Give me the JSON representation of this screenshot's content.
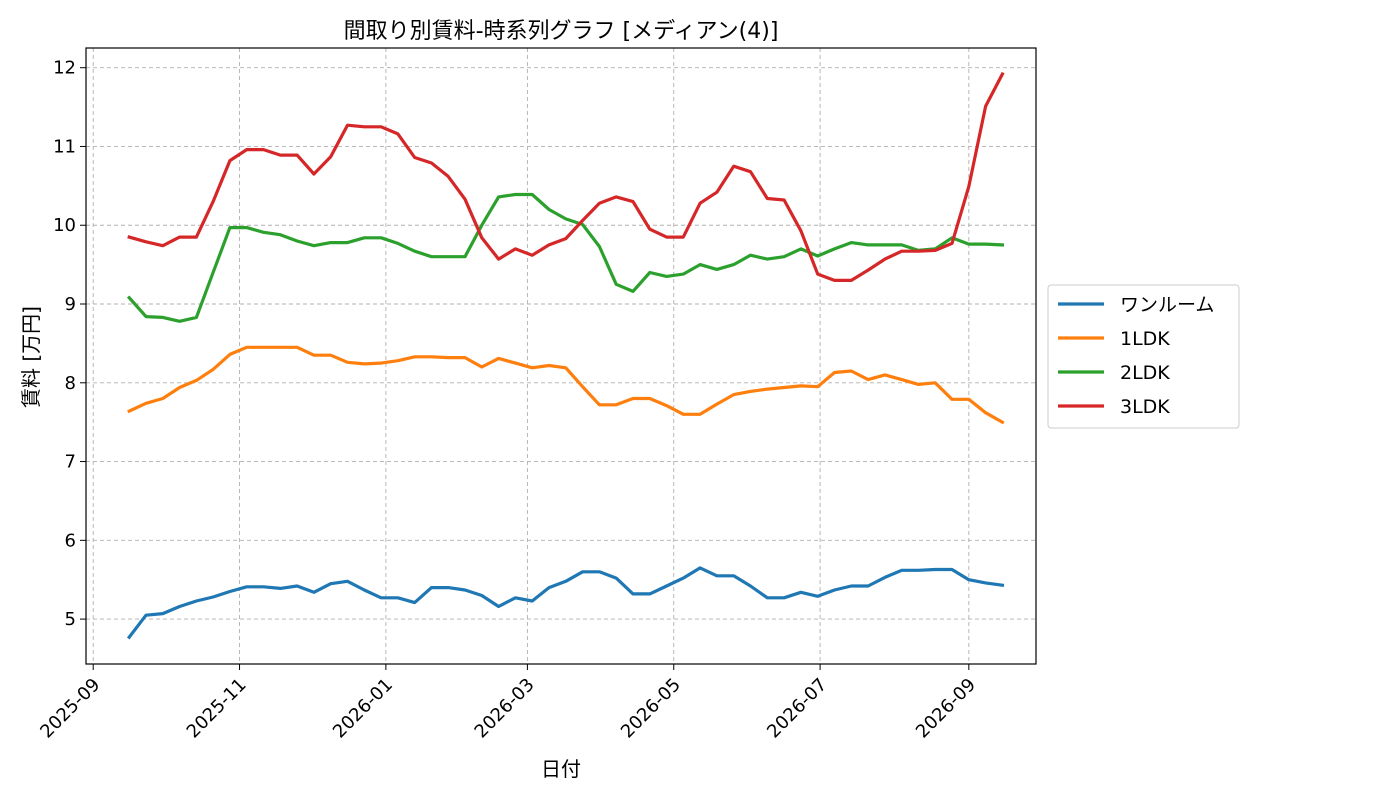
{
  "chart_data": {
    "type": "line",
    "title": "間取り別賃料-時系列グラフ [メディアン(4)]",
    "xlabel": "日付",
    "ylabel": "賃料 [万円]",
    "x_tick_labels": [
      "2025-09",
      "2025-11",
      "2026-01",
      "2026-03",
      "2026-05",
      "2026-07",
      "2026-09"
    ],
    "y_tick_labels": [
      "5",
      "6",
      "7",
      "8",
      "9",
      "10",
      "11",
      "12"
    ],
    "xlim": [
      "2025-08-29",
      "2026-09-29"
    ],
    "ylim": [
      4.43,
      12.25
    ],
    "grid": true,
    "legend_position": "center-right outside",
    "x": [
      "2025-09-16",
      "2025-09-23",
      "2025-09-30",
      "2025-10-07",
      "2025-10-14",
      "2025-10-21",
      "2025-10-28",
      "2025-11-04",
      "2025-11-11",
      "2025-11-18",
      "2025-11-25",
      "2025-12-02",
      "2025-12-09",
      "2025-12-16",
      "2025-12-23",
      "2025-12-30",
      "2026-01-06",
      "2026-01-13",
      "2026-01-20",
      "2026-01-27",
      "2026-02-03",
      "2026-02-10",
      "2026-02-17",
      "2026-02-24",
      "2026-03-03",
      "2026-03-10",
      "2026-03-17",
      "2026-03-24",
      "2026-03-31",
      "2026-04-07",
      "2026-04-14",
      "2026-04-21",
      "2026-04-28",
      "2026-05-05",
      "2026-05-12",
      "2026-05-19",
      "2026-05-26",
      "2026-06-02",
      "2026-06-09",
      "2026-06-16",
      "2026-06-23",
      "2026-06-30",
      "2026-07-07",
      "2026-07-14",
      "2026-07-21",
      "2026-07-28",
      "2026-08-04",
      "2026-08-11",
      "2026-08-18",
      "2026-08-25",
      "2026-09-01",
      "2026-09-08",
      "2026-09-15"
    ],
    "series": [
      {
        "name": "ワンルーム",
        "color": "#1f77b4",
        "values": [
          4.77,
          5.05,
          5.07,
          5.16,
          5.23,
          5.28,
          5.35,
          5.41,
          5.41,
          5.39,
          5.42,
          5.34,
          5.45,
          5.48,
          5.37,
          5.27,
          5.27,
          5.21,
          5.4,
          5.4,
          5.37,
          5.3,
          5.16,
          5.27,
          5.23,
          5.4,
          5.48,
          5.6,
          5.6,
          5.52,
          5.32,
          5.32,
          5.42,
          5.52,
          5.65,
          5.55,
          5.55,
          5.42,
          5.27,
          5.27,
          5.34,
          5.29,
          5.37,
          5.42,
          5.42,
          5.53,
          5.62,
          5.62,
          5.63,
          5.63,
          5.5,
          5.46,
          5.43
        ]
      },
      {
        "name": "1LDK",
        "color": "#ff7f0e",
        "values": [
          7.64,
          7.74,
          7.8,
          7.94,
          8.03,
          8.17,
          8.36,
          8.45,
          8.45,
          8.45,
          8.45,
          8.35,
          8.35,
          8.26,
          8.24,
          8.25,
          8.28,
          8.33,
          8.33,
          8.32,
          8.32,
          8.2,
          8.31,
          8.25,
          8.19,
          8.22,
          8.19,
          7.95,
          7.72,
          7.72,
          7.8,
          7.8,
          7.71,
          7.6,
          7.6,
          7.73,
          7.85,
          7.89,
          7.92,
          7.94,
          7.96,
          7.95,
          8.13,
          8.15,
          8.04,
          8.1,
          8.04,
          7.98,
          8.0,
          7.79,
          7.79,
          7.62,
          7.5
        ]
      },
      {
        "name": "2LDK",
        "color": "#2ca02c",
        "values": [
          9.08,
          8.84,
          8.83,
          8.78,
          8.83,
          9.4,
          9.97,
          9.97,
          9.91,
          9.88,
          9.8,
          9.74,
          9.78,
          9.78,
          9.84,
          9.84,
          9.77,
          9.67,
          9.6,
          9.6,
          9.6,
          10.0,
          10.36,
          10.39,
          10.39,
          10.2,
          10.08,
          10.01,
          9.73,
          9.25,
          9.16,
          9.4,
          9.35,
          9.38,
          9.5,
          9.44,
          9.5,
          9.62,
          9.57,
          9.6,
          9.7,
          9.61,
          9.7,
          9.78,
          9.75,
          9.75,
          9.75,
          9.68,
          9.7,
          9.84,
          9.76,
          9.76,
          9.75
        ]
      },
      {
        "name": "3LDK",
        "color": "#d62728",
        "values": [
          9.85,
          9.79,
          9.74,
          9.85,
          9.85,
          10.3,
          10.82,
          10.96,
          10.96,
          10.89,
          10.89,
          10.65,
          10.87,
          11.27,
          11.25,
          11.25,
          11.16,
          10.86,
          10.79,
          10.62,
          10.33,
          9.84,
          9.57,
          9.7,
          9.62,
          9.75,
          9.83,
          10.06,
          10.28,
          10.36,
          10.3,
          9.95,
          9.85,
          9.85,
          10.28,
          10.42,
          10.75,
          10.68,
          10.34,
          10.32,
          9.93,
          9.38,
          9.3,
          9.3,
          9.43,
          9.57,
          9.67,
          9.67,
          9.68,
          9.77,
          10.49,
          11.51,
          11.92
        ]
      }
    ]
  }
}
